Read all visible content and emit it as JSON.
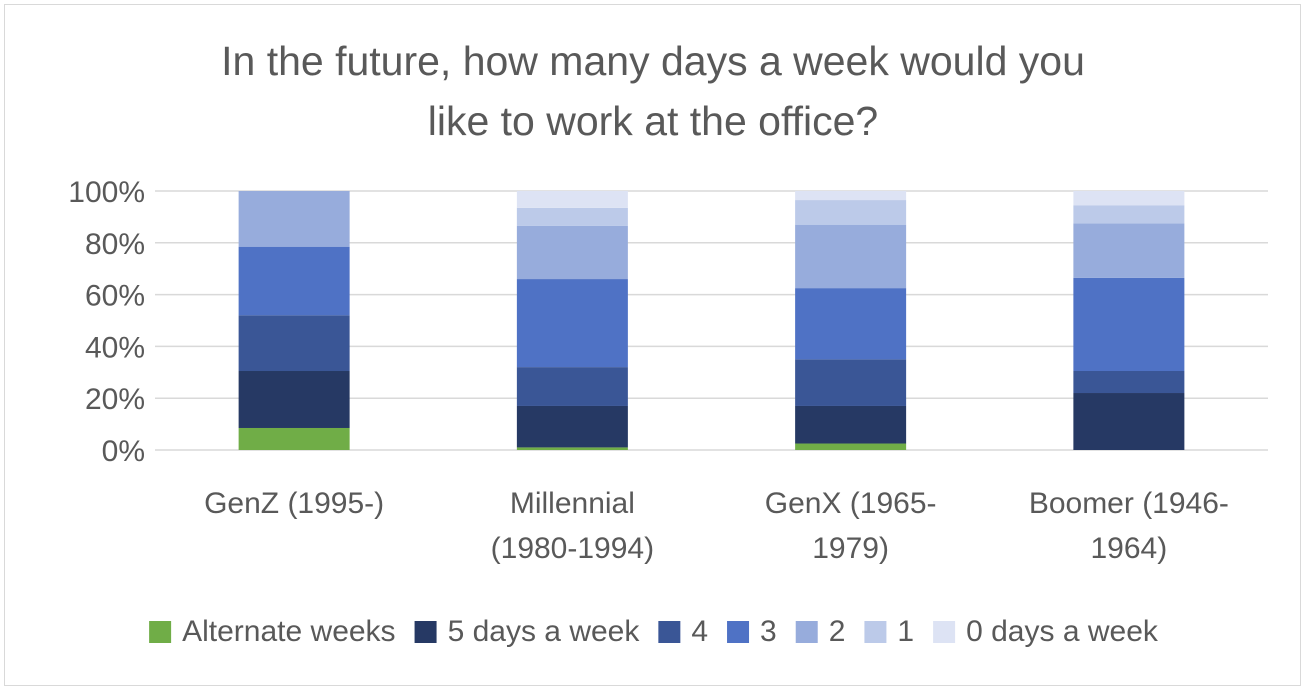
{
  "chart_data": {
    "type": "bar",
    "stacked": true,
    "title_lines": [
      "In the future, how many days a week would you",
      "like to work at the office?"
    ],
    "categories": [
      [
        "GenZ (1995-)"
      ],
      [
        "Millennial",
        "(1980-1994)"
      ],
      [
        "GenX (1965-",
        "1979)"
      ],
      [
        "Boomer (1946-",
        "1964)"
      ]
    ],
    "y_ticks": [
      "0%",
      "20%",
      "40%",
      "60%",
      "80%",
      "100%"
    ],
    "ylim": [
      0,
      100
    ],
    "grid": true,
    "legend_position": "bottom",
    "series": [
      {
        "name": "Alternate weeks",
        "color": "#70ad47",
        "values": [
          8.5,
          1,
          2.5,
          0
        ]
      },
      {
        "name": "5 days a week",
        "color": "#263964",
        "values": [
          22,
          16,
          14.5,
          22
        ]
      },
      {
        "name": "4",
        "color": "#3a5696",
        "values": [
          21.5,
          15,
          18,
          8.5
        ]
      },
      {
        "name": "3",
        "color": "#4f72c5",
        "values": [
          26.5,
          34,
          27.5,
          36
        ]
      },
      {
        "name": "2",
        "color": "#97acdc",
        "values": [
          21.5,
          20.5,
          24.5,
          21
        ]
      },
      {
        "name": "1",
        "color": "#bccae9",
        "values": [
          0,
          7,
          9.5,
          7
        ]
      },
      {
        "name": "0 days a week",
        "color": "#dde3f4",
        "values": [
          0,
          6.5,
          3.5,
          5.5
        ]
      }
    ]
  }
}
